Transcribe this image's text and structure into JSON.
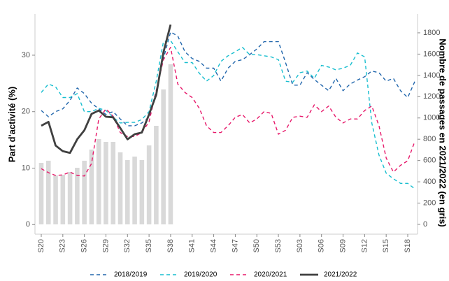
{
  "chart_data": {
    "type": "line",
    "y_label": "Part d'activité (%)",
    "y2_label": "Nombre de passages en 2021/2022 (en gris)",
    "categories": [
      "S20",
      null,
      null,
      "S23",
      null,
      null,
      "S26",
      null,
      null,
      "S29",
      null,
      null,
      "S32",
      null,
      null,
      "S35",
      null,
      null,
      "S38",
      null,
      null,
      "S41",
      null,
      null,
      "S44",
      null,
      null,
      "S47",
      null,
      null,
      "S50",
      null,
      null,
      "S53",
      null,
      null,
      "S03",
      null,
      null,
      "S06",
      null,
      null,
      "S09",
      null,
      null,
      "S12",
      null,
      null,
      "S15",
      null,
      null,
      "S18",
      null
    ],
    "ylim": [
      -1.7,
      37.3
    ],
    "yticks": [
      0,
      10,
      20,
      30
    ],
    "y2lim": [
      -92,
      1977
    ],
    "y2ticks": [
      0,
      200,
      400,
      600,
      800,
      1000,
      1200,
      1400,
      1600,
      1800
    ],
    "grid": false,
    "legend": "bottom",
    "series": [
      {
        "color": "#d9d9d9",
        "axis": "y2",
        "kind": "bar",
        "values": [
          578,
          598,
          460,
          466,
          493,
          532,
          598,
          703,
          802,
          775,
          775,
          677,
          604,
          637,
          604,
          742,
          926,
          1268,
          1505,
          null,
          null,
          null,
          null,
          null,
          null,
          null,
          null,
          null,
          null,
          null,
          null,
          null,
          null,
          null,
          null,
          null,
          null,
          null,
          null,
          null,
          null,
          null,
          null,
          null,
          null,
          null,
          null,
          null,
          null,
          null,
          null,
          null,
          null
        ]
      },
      {
        "name": "2018/2019",
        "color": "#2166ac",
        "dashed": true,
        "values": [
          20.2,
          19.1,
          20,
          20.5,
          22,
          24.2,
          23.2,
          21.5,
          20.5,
          19.5,
          20,
          18.7,
          17.5,
          17.5,
          18,
          19,
          23.7,
          29.4,
          34.1,
          33.4,
          30.6,
          29.4,
          28.9,
          27.7,
          27.7,
          25.4,
          27.7,
          28.9,
          29.2,
          30.1,
          31.1,
          32.4,
          32.4,
          32.4,
          28.7,
          24.7,
          24.7,
          26.9,
          25.7,
          24.7,
          23.7,
          25.9,
          23.7,
          24.9,
          25.6,
          26.2,
          27.2,
          26.9,
          25.4,
          25.9,
          23.7,
          22.5,
          25.4
        ]
      },
      {
        "name": "2019/2020",
        "color": "#17becf",
        "dashed": true,
        "values": [
          23.4,
          24.9,
          24.4,
          22.5,
          22.5,
          23.2,
          20,
          20,
          20.6,
          20.2,
          19,
          18,
          18.1,
          18.1,
          18.6,
          20,
          25.4,
          32.4,
          32.6,
          30.6,
          28.7,
          28.7,
          26.8,
          25.4,
          26.4,
          28.9,
          29.9,
          30.6,
          31.4,
          30.1,
          30.1,
          29.9,
          29.7,
          29.2,
          25.4,
          25.2,
          26.9,
          27.2,
          25.9,
          28.2,
          27.9,
          27.4,
          27.7,
          28.2,
          30.4,
          29.7,
          18,
          12.3,
          9.1,
          8.1,
          7.3,
          7.3,
          6.3
        ]
      },
      {
        "name": "2020/2021",
        "color": "#e7186a",
        "dashed": true,
        "values": [
          9.9,
          9.2,
          8.7,
          8.8,
          9.3,
          8.7,
          8.6,
          10.8,
          18.7,
          20.5,
          19.2,
          16.3,
          15.6,
          15.6,
          16.3,
          18.2,
          23.7,
          29.2,
          31.4,
          24.9,
          23.4,
          22.5,
          20.6,
          17.5,
          16.3,
          16.3,
          17.5,
          19,
          19.5,
          18,
          18.7,
          20,
          19.7,
          16,
          16.7,
          19,
          19.2,
          19,
          21.2,
          20,
          21,
          19,
          18,
          18.7,
          18.7,
          20.2,
          21,
          17.5,
          11.8,
          9.3,
          10.5,
          11.3,
          14.8
        ]
      },
      {
        "name": "2021/2022",
        "color": "#404040",
        "dashed": false,
        "values": [
          17.5,
          18.2,
          14,
          13,
          12.7,
          15.1,
          16.7,
          19.6,
          20.2,
          19.1,
          19,
          17.1,
          15.1,
          16,
          16.3,
          19.5,
          23,
          30.5,
          35.4,
          null,
          null,
          null,
          null,
          null,
          null,
          null,
          null,
          null,
          null,
          null,
          null,
          null,
          null,
          null,
          null,
          null,
          null,
          null,
          null,
          null,
          null,
          null,
          null,
          null,
          null,
          null,
          null,
          null,
          null,
          null,
          null,
          null,
          null
        ]
      }
    ]
  }
}
